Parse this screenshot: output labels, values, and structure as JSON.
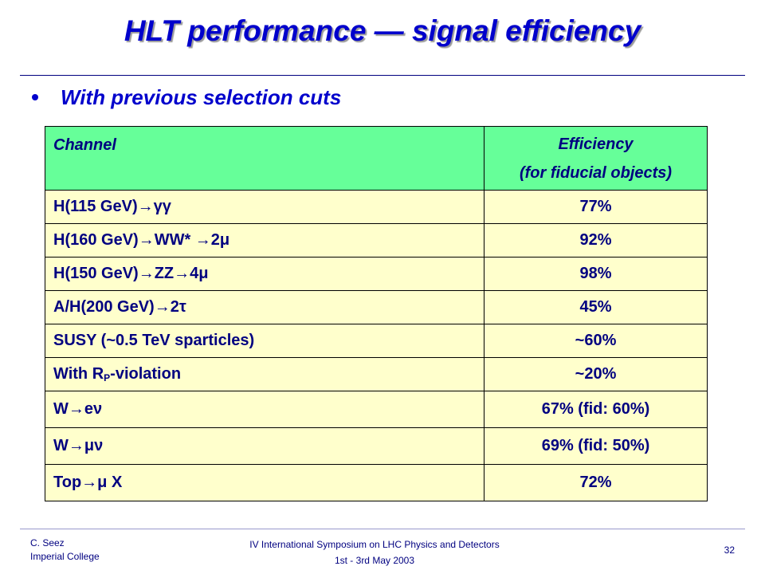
{
  "slide": {
    "title": "HLT performance — signal efficiency",
    "bullet": "With previous selection cuts"
  },
  "table": {
    "header": {
      "channel": "Channel",
      "efficiency_line1": "Efficiency",
      "efficiency_line2": "(for fiducial objects)"
    },
    "rows": [
      {
        "channel": "H(115 GeV)→γγ",
        "efficiency": "77%"
      },
      {
        "channel": "H(160 GeV)→WW* →2μ",
        "efficiency": "92%"
      },
      {
        "channel": "H(150 GeV)→ZZ→4μ",
        "efficiency": "98%"
      },
      {
        "channel": "A/H(200 GeV)→2τ",
        "efficiency": "45%"
      },
      {
        "channel": "SUSY (~0.5 TeV sparticles)",
        "efficiency": "~60%"
      },
      {
        "channel_main": "With R",
        "channel_sub": "P",
        "channel_rest": "-violation",
        "efficiency": "~20%"
      },
      {
        "channel": "W→eν",
        "efficiency": "67% (fid: 60%)"
      },
      {
        "channel": "W→μν",
        "efficiency": "69% (fid: 50%)"
      },
      {
        "channel": "Top→μ X",
        "efficiency": "72%"
      }
    ]
  },
  "footer": {
    "author": "C. Seez",
    "institution": "Imperial College",
    "event": "IV International Symposium on LHC Physics and Detectors",
    "dates": "1st - 3rd May 2003",
    "page_number": "32"
  },
  "colors": {
    "title": "#0000cc",
    "table_header_bg": "#66ff99",
    "table_row_bg": "#ffffcc",
    "table_text": "#000080"
  }
}
